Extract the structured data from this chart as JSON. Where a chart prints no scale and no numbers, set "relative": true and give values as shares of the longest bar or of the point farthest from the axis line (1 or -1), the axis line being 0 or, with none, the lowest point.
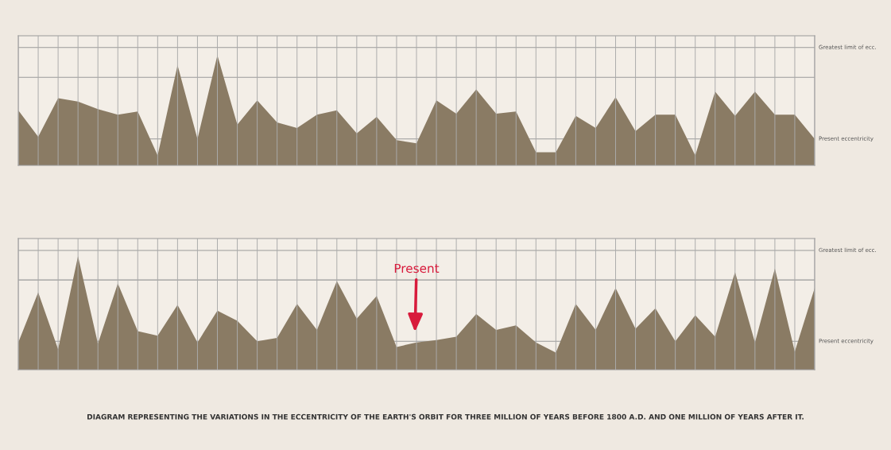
{
  "chart_data": [
    {
      "type": "area",
      "relative": true,
      "categories": [
        null,
        null,
        null,
        null,
        null,
        null,
        null,
        null,
        null,
        null,
        null,
        null,
        null,
        null,
        null,
        null,
        null,
        null,
        null,
        null,
        null,
        null,
        null,
        null,
        null,
        null,
        null,
        null,
        null,
        null,
        null,
        null,
        null,
        null,
        null,
        null,
        null,
        null,
        null,
        null,
        null
      ],
      "series": [
        {
          "color": "#8a7b64",
          "values": [
            0.5,
            0.26,
            0.61,
            0.58,
            0.51,
            0.46,
            0.49,
            0.09,
            0.91,
            0.24,
            1,
            0.37,
            0.59,
            0.39,
            0.34,
            0.46,
            0.5,
            0.29,
            0.44,
            0.23,
            0.2,
            0.59,
            0.47,
            0.69,
            0.47,
            0.49,
            0.12,
            0.12,
            0.45,
            0.34,
            0.62,
            0.31,
            0.46,
            0.46,
            0.09,
            0.67,
            0.45,
            0.67,
            0.46,
            0.46,
            0.24
          ]
        }
      ],
      "ref_lines": [
        {
          "axis": "y",
          "value": 1.07,
          "label": "Greatest limit of ecc.",
          "color": "#9a9a9a"
        },
        {
          "axis": "y",
          "value": 0.8,
          "color": "#9a9a9a"
        },
        {
          "axis": "y",
          "value": 0.24,
          "label": "Present eccentricity",
          "color": "#9a9a9a"
        }
      ],
      "grid": "x"
    },
    {
      "type": "area",
      "relative": true,
      "categories": [
        null,
        null,
        null,
        null,
        null,
        null,
        null,
        null,
        null,
        null,
        null,
        null,
        null,
        null,
        null,
        null,
        null,
        null,
        null,
        null,
        null,
        null,
        null,
        null,
        null,
        null,
        null,
        null,
        null,
        null,
        null,
        null,
        null,
        null,
        null,
        null,
        null,
        null,
        null,
        null,
        null
      ],
      "series": [
        {
          "color": "#8a7b64",
          "values": [
            0.24,
            0.68,
            0.18,
            1,
            0.23,
            0.76,
            0.34,
            0.3,
            0.57,
            0.24,
            0.52,
            0.43,
            0.25,
            0.28,
            0.58,
            0.35,
            0.78,
            0.45,
            0.65,
            0.2,
            0.24,
            0.26,
            0.29,
            0.49,
            0.35,
            0.39,
            0.24,
            0.15,
            0.58,
            0.35,
            0.72,
            0.36,
            0.54,
            0.25,
            0.48,
            0.29,
            0.86,
            0.24,
            0.89,
            0.16,
            0.72
          ]
        }
      ],
      "ref_lines": [
        {
          "axis": "y",
          "value": 1.05,
          "label": "Greatest limit of ecc.",
          "color": "#9a9a9a"
        },
        {
          "axis": "y",
          "value": 0.79,
          "color": "#9a9a9a"
        },
        {
          "axis": "y",
          "value": 0.25,
          "label": "Present eccentricity",
          "color": "#9a9a9a"
        }
      ],
      "annotations": [
        "Present",
        "DIAGRAM REPRESENTING THE VARIATIONS IN THE ECCENTRICITY OF THE EARTH'S ORBIT FOR THREE MILLION OF YEARS BEFORE 1800 A.D. AND ONE MILLION OF YEARS AFTER IT."
      ],
      "grid": "x"
    }
  ]
}
